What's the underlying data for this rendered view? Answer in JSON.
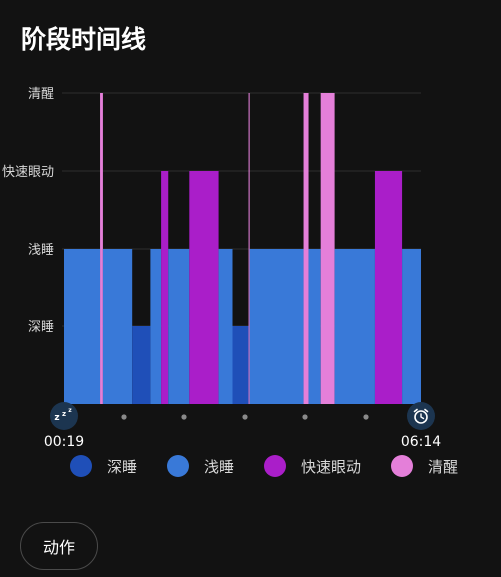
{
  "page": {
    "title": "阶段时间线"
  },
  "chart_data": {
    "type": "bar",
    "title": "",
    "stages": [
      "深睡",
      "浅睡",
      "快速眼动",
      "清醒"
    ],
    "stage_levels": {
      "深睡": 1,
      "浅睡": 2,
      "快速眼动": 3,
      "清醒": 4
    },
    "x_range": [
      0,
      100
    ],
    "x_labels": {
      "start": "00:19",
      "end": "06:14"
    },
    "legend": [
      {
        "label": "深睡",
        "color": "#1f4fb8"
      },
      {
        "label": "浅睡",
        "color": "#3979d8"
      },
      {
        "label": "快速眼动",
        "color": "#aa1ec9"
      },
      {
        "label": "清醒",
        "color": "#e47fd9"
      }
    ],
    "segments": [
      {
        "start": 0.0,
        "end": 10.1,
        "stage": "浅睡"
      },
      {
        "start": 10.1,
        "end": 10.9,
        "stage": "清醒"
      },
      {
        "start": 10.9,
        "end": 19.1,
        "stage": "浅睡"
      },
      {
        "start": 19.1,
        "end": 24.2,
        "stage": "深睡"
      },
      {
        "start": 24.2,
        "end": 27.2,
        "stage": "浅睡"
      },
      {
        "start": 27.2,
        "end": 29.2,
        "stage": "快速眼动"
      },
      {
        "start": 29.2,
        "end": 35.1,
        "stage": "浅睡"
      },
      {
        "start": 35.1,
        "end": 43.3,
        "stage": "快速眼动"
      },
      {
        "start": 43.3,
        "end": 47.2,
        "stage": "浅睡"
      },
      {
        "start": 47.2,
        "end": 51.7,
        "stage": "深睡"
      },
      {
        "start": 51.7,
        "end": 52.0,
        "stage": "清醒"
      },
      {
        "start": 52.0,
        "end": 67.1,
        "stage": "浅睡"
      },
      {
        "start": 67.1,
        "end": 68.5,
        "stage": "清醒"
      },
      {
        "start": 68.5,
        "end": 71.9,
        "stage": "浅睡"
      },
      {
        "start": 71.9,
        "end": 75.8,
        "stage": "清醒"
      },
      {
        "start": 75.8,
        "end": 87.1,
        "stage": "浅睡"
      },
      {
        "start": 87.1,
        "end": 94.7,
        "stage": "快速眼动"
      },
      {
        "start": 94.7,
        "end": 100.0,
        "stage": "浅睡"
      }
    ]
  },
  "action": {
    "label": "动作"
  }
}
